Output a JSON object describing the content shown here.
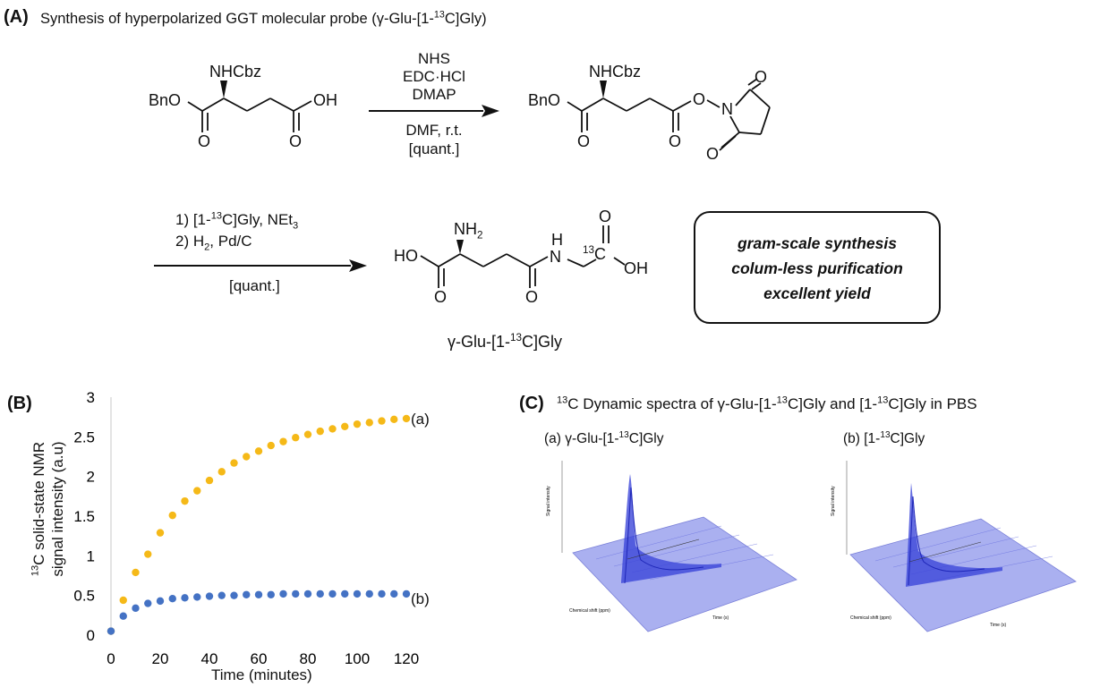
{
  "panelA": {
    "label": "(A)",
    "title_pre": "Synthesis of hyperpolarized  GGT molecular probe (γ-Glu-[1-",
    "title_sup": "13",
    "title_post": "C]Gly)",
    "mol1": {
      "nh": "NHCbz",
      "left": "BnO",
      "right": "OH",
      "o1": "O",
      "o2": "O"
    },
    "step1": {
      "reagents": [
        "NHS",
        "EDC·HCl",
        "DMAP"
      ],
      "below": [
        "DMF, r.t.",
        "[quant.]"
      ]
    },
    "mol2": {
      "nh": "NHCbz",
      "left": "BnO",
      "o_link": "O",
      "n": "N",
      "o1": "O",
      "o2": "O",
      "o_top": "O",
      "o_bot": "O"
    },
    "step2": {
      "l1_pre": "1) [1-",
      "l1_sup": "13",
      "l1_mid": "C]Gly, NEt",
      "l1_sub": "3",
      "l2_pre": "2) H",
      "l2_sub": "2",
      "l2_post": ", Pd/C",
      "below": "[quant.]"
    },
    "product": {
      "nh2": "NH",
      "nh2_sub": "2",
      "ho": "HO",
      "h": "H",
      "n": "N",
      "c13": "13",
      "c": "C",
      "oh": "OH",
      "o_top": "O",
      "o1": "O",
      "o2": "O",
      "name_pre": "γ-Glu-[1-",
      "name_sup": "13",
      "name_post": "C]Gly"
    },
    "box": [
      "gram-scale synthesis",
      "colum-less purification",
      "excellent yield"
    ]
  },
  "panelB": {
    "label": "(B)",
    "ylabel_line1_sup": "13",
    "ylabel_line1": "C solid-state NMR",
    "ylabel_line2": "signal intensity (a.u)",
    "xlabel": "Time  (minutes)",
    "series_a_label": "(a)",
    "series_b_label": "(b)",
    "colors": {
      "a": "#f5b918",
      "b": "#4472c4",
      "axis": "#c8c8c8"
    },
    "chart_data": {
      "type": "scatter",
      "xlim": [
        0,
        120
      ],
      "ylim": [
        0,
        3
      ],
      "xticks": [
        "0",
        "20",
        "40",
        "60",
        "80",
        "100",
        "120"
      ],
      "yticks": [
        "0",
        "0.5",
        "1",
        "1.5",
        "2",
        "2.5",
        "3"
      ],
      "x": [
        0,
        5,
        10,
        15,
        20,
        25,
        30,
        35,
        40,
        45,
        50,
        55,
        60,
        65,
        70,
        75,
        80,
        85,
        90,
        95,
        100,
        105,
        110,
        115,
        120
      ],
      "series": [
        {
          "name": "(a)",
          "values": [
            0.05,
            0.44,
            0.79,
            1.02,
            1.29,
            1.51,
            1.69,
            1.82,
            1.95,
            2.06,
            2.17,
            2.25,
            2.32,
            2.39,
            2.44,
            2.49,
            2.53,
            2.57,
            2.6,
            2.63,
            2.66,
            2.68,
            2.7,
            2.72,
            2.73
          ]
        },
        {
          "name": "(b)",
          "values": [
            0.05,
            0.24,
            0.34,
            0.4,
            0.43,
            0.46,
            0.47,
            0.48,
            0.49,
            0.5,
            0.5,
            0.51,
            0.51,
            0.51,
            0.52,
            0.52,
            0.52,
            0.52,
            0.52,
            0.52,
            0.52,
            0.52,
            0.52,
            0.52,
            0.52
          ]
        }
      ]
    }
  },
  "panelC": {
    "label": "(C)",
    "title_pre_sup": "13",
    "title_pre": "C Dynamic spectra of γ-Glu-[1-",
    "title_mid_sup": "13",
    "title_mid": "C]Gly and [1-",
    "title_end_sup": "13",
    "title_end": "C]Gly in PBS",
    "plot_a": {
      "label_pre": "(a) γ-Glu-[1-",
      "label_sup": "13",
      "label_post": "C]Gly"
    },
    "plot_b": {
      "label_pre": "(b) [1-",
      "label_sup": "13",
      "label_post": "C]Gly"
    },
    "axis_labels": {
      "z": "Signal intensity",
      "x": "Chemical shift (ppm)",
      "y": "Time (s)"
    },
    "colors": {
      "surface": "#aab0f0",
      "peak": "#3a44d8"
    }
  }
}
